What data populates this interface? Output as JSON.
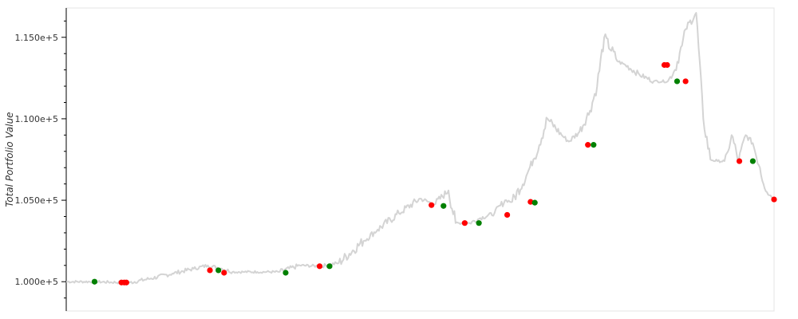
{
  "chart_data": {
    "type": "line",
    "title": "",
    "xlabel": "",
    "ylabel": "Total Portfolio Value",
    "xlim": [
      0,
      100
    ],
    "ylim": [
      98200,
      116800
    ],
    "yticks": [
      100000,
      105000,
      110000,
      115000
    ],
    "ytick_labels": [
      "1.000e+5",
      "1.050e+5",
      "1.100e+5",
      "1.150e+5"
    ],
    "grid": false,
    "legend": "none",
    "colors": {
      "line": "#d4d4d4",
      "buy": "#008000",
      "sell": "#ff0000",
      "axis": "#000000",
      "frame": "#e5e5e5"
    },
    "series": [
      {
        "name": "Total Portfolio Value",
        "x": [
          0,
          4,
          7.8,
          9,
          12,
          15,
          18,
          20,
          22,
          23.5,
          25,
          27,
          30,
          33,
          36,
          38.5,
          42,
          44,
          47,
          50,
          52,
          54,
          55,
          57,
          58.5,
          60.5,
          62,
          63,
          65,
          66,
          68,
          70,
          71,
          72.5,
          74,
          75,
          76,
          78,
          79,
          81,
          83,
          85,
          86,
          87,
          87.5,
          89,
          90,
          91,
          92,
          93,
          93.5,
          94,
          95,
          96,
          97,
          98,
          98.5,
          99,
          100
        ],
        "values": [
          100000,
          100000,
          99950,
          99950,
          100200,
          100500,
          100800,
          101000,
          100800,
          100600,
          100600,
          100600,
          100600,
          101000,
          100950,
          101150,
          102500,
          103200,
          104200,
          105100,
          104750,
          105600,
          103600,
          103600,
          103900,
          104200,
          105000,
          104900,
          106500,
          107500,
          110000,
          109000,
          108600,
          109200,
          110500,
          112000,
          115000,
          113500,
          113300,
          112700,
          112300,
          112300,
          113000,
          114500,
          115500,
          116500,
          110000,
          107500,
          107400,
          107400,
          108000,
          109000,
          107400,
          109000,
          108500,
          107000,
          106000,
          105500,
          105100
        ]
      }
    ],
    "buy_trades": {
      "x": [
        4,
        21.5,
        31,
        37.2,
        53.3,
        58.3,
        66.2,
        74.5,
        86.3,
        97
      ],
      "values": [
        100000,
        100700,
        100550,
        100950,
        104650,
        103600,
        104850,
        108400,
        112300,
        107400
      ]
    },
    "sell_trades": {
      "x": [
        7.8,
        8.2,
        8.5,
        20.3,
        22.3,
        35.8,
        51.6,
        56.3,
        62.3,
        65.6,
        73.7,
        84.5,
        84.9,
        87.5,
        95.1,
        100
      ],
      "values": [
        99950,
        99950,
        99950,
        100700,
        100550,
        100950,
        104700,
        103600,
        104100,
        104900,
        108400,
        113300,
        113300,
        112300,
        107400,
        105050
      ]
    }
  }
}
